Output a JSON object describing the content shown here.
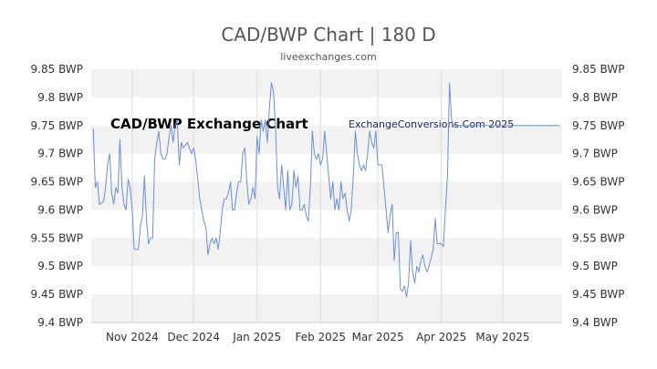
{
  "header": {
    "title": "CAD/BWP Chart | 180 D",
    "subtitle": "liveexchanges.com"
  },
  "watermarks": {
    "chart_label": "CAD/BWP Exchange Chart",
    "site_label": "ExchangeConversions.Com 2025"
  },
  "colors": {
    "line": "#6b8fd6",
    "band": "#f2f2f2",
    "grid": "#dddddd"
  },
  "chart_data": {
    "type": "line",
    "title": "CAD/BWP Chart | 180 D",
    "subtitle": "liveexchanges.com",
    "xlabel": "",
    "ylabel": "",
    "ylim": [
      9.4,
      9.85
    ],
    "y_ticks": [
      {
        "value": 9.85,
        "label": "9.85 BWP"
      },
      {
        "value": 9.8,
        "label": "9.8 BWP"
      },
      {
        "value": 9.75,
        "label": "9.75 BWP"
      },
      {
        "value": 9.7,
        "label": "9.7 BWP"
      },
      {
        "value": 9.65,
        "label": "9.65 BWP"
      },
      {
        "value": 9.6,
        "label": "9.6 BWP"
      },
      {
        "value": 9.55,
        "label": "9.55 BWP"
      },
      {
        "value": 9.5,
        "label": "9.5 BWP"
      },
      {
        "value": 9.45,
        "label": "9.45 BWP"
      },
      {
        "value": 9.4,
        "label": "9.4 BWP"
      }
    ],
    "x_range": [
      "2024-10-12",
      "2025-05-30"
    ],
    "x_ticks": [
      {
        "date": "2024-11-01",
        "label": "Nov 2024"
      },
      {
        "date": "2024-12-01",
        "label": "Dec 2024"
      },
      {
        "date": "2025-01-01",
        "label": "Jan 2025"
      },
      {
        "date": "2025-02-01",
        "label": "Feb 2025"
      },
      {
        "date": "2025-03-01",
        "label": "Mar 2025"
      },
      {
        "date": "2025-04-01",
        "label": "Apr 2025"
      },
      {
        "date": "2025-05-01",
        "label": "May 2025"
      }
    ],
    "grid": true,
    "legend": "none",
    "series": [
      {
        "points": [
          [
            "2024-10-13",
            9.745
          ],
          [
            "2024-10-14",
            9.64
          ],
          [
            "2024-10-15",
            9.65
          ],
          [
            "2024-10-16",
            9.61
          ],
          [
            "2024-10-18",
            9.615
          ],
          [
            "2024-10-19",
            9.64
          ],
          [
            "2024-10-20",
            9.68
          ],
          [
            "2024-10-21",
            9.7
          ],
          [
            "2024-10-22",
            9.63
          ],
          [
            "2024-10-23",
            9.61
          ],
          [
            "2024-10-24",
            9.64
          ],
          [
            "2024-10-25",
            9.63
          ],
          [
            "2024-10-26",
            9.725
          ],
          [
            "2024-10-27",
            9.64
          ],
          [
            "2024-10-28",
            9.61
          ],
          [
            "2024-10-29",
            9.6
          ],
          [
            "2024-10-30",
            9.655
          ],
          [
            "2024-10-31",
            9.64
          ],
          [
            "2024-11-01",
            9.6
          ],
          [
            "2024-11-02",
            9.53
          ],
          [
            "2024-11-03",
            9.53
          ],
          [
            "2024-11-04",
            9.53
          ],
          [
            "2024-11-05",
            9.57
          ],
          [
            "2024-11-06",
            9.59
          ],
          [
            "2024-11-07",
            9.66
          ],
          [
            "2024-11-08",
            9.58
          ],
          [
            "2024-11-09",
            9.54
          ],
          [
            "2024-11-10",
            9.55
          ],
          [
            "2024-11-11",
            9.55
          ],
          [
            "2024-11-12",
            9.69
          ],
          [
            "2024-11-13",
            9.72
          ],
          [
            "2024-11-14",
            9.74
          ],
          [
            "2024-11-15",
            9.7
          ],
          [
            "2024-11-16",
            9.69
          ],
          [
            "2024-11-17",
            9.69
          ],
          [
            "2024-11-18",
            9.7
          ],
          [
            "2024-11-19",
            9.73
          ],
          [
            "2024-11-20",
            9.75
          ],
          [
            "2024-11-21",
            9.72
          ],
          [
            "2024-11-22",
            9.75
          ],
          [
            "2024-11-23",
            9.76
          ],
          [
            "2024-11-24",
            9.68
          ],
          [
            "2024-11-25",
            9.72
          ],
          [
            "2024-11-26",
            9.71
          ],
          [
            "2024-11-28",
            9.72
          ],
          [
            "2024-11-29",
            9.71
          ],
          [
            "2024-11-30",
            9.7
          ],
          [
            "2024-12-01",
            9.71
          ],
          [
            "2024-12-02",
            9.69
          ],
          [
            "2024-12-04",
            9.62
          ],
          [
            "2024-12-05",
            9.6
          ],
          [
            "2024-12-06",
            9.58
          ],
          [
            "2024-12-07",
            9.57
          ],
          [
            "2024-12-08",
            9.52
          ],
          [
            "2024-12-09",
            9.54
          ],
          [
            "2024-12-10",
            9.55
          ],
          [
            "2024-12-11",
            9.54
          ],
          [
            "2024-12-12",
            9.55
          ],
          [
            "2024-12-13",
            9.53
          ],
          [
            "2024-12-14",
            9.56
          ],
          [
            "2024-12-15",
            9.6
          ],
          [
            "2024-12-16",
            9.62
          ],
          [
            "2024-12-17",
            9.62
          ],
          [
            "2024-12-18",
            9.63
          ],
          [
            "2024-12-19",
            9.65
          ],
          [
            "2024-12-20",
            9.6
          ],
          [
            "2024-12-21",
            9.6
          ],
          [
            "2024-12-22",
            9.63
          ],
          [
            "2024-12-23",
            9.65
          ],
          [
            "2024-12-24",
            9.65
          ],
          [
            "2024-12-25",
            9.7
          ],
          [
            "2024-12-26",
            9.71
          ],
          [
            "2024-12-27",
            9.65
          ],
          [
            "2024-12-28",
            9.61
          ],
          [
            "2024-12-29",
            9.62
          ],
          [
            "2024-12-30",
            9.64
          ],
          [
            "2024-12-31",
            9.62
          ],
          [
            "2025-01-01",
            9.73
          ],
          [
            "2025-01-02",
            9.7
          ],
          [
            "2025-01-03",
            9.76
          ],
          [
            "2025-01-04",
            9.74
          ],
          [
            "2025-01-05",
            9.76
          ],
          [
            "2025-01-06",
            9.72
          ],
          [
            "2025-01-07",
            9.78
          ],
          [
            "2025-01-08",
            9.826
          ],
          [
            "2025-01-09",
            9.81
          ],
          [
            "2025-01-10",
            9.75
          ],
          [
            "2025-01-11",
            9.64
          ],
          [
            "2025-01-12",
            9.62
          ],
          [
            "2025-01-13",
            9.68
          ],
          [
            "2025-01-14",
            9.64
          ],
          [
            "2025-01-15",
            9.6
          ],
          [
            "2025-01-16",
            9.67
          ],
          [
            "2025-01-17",
            9.6
          ],
          [
            "2025-01-18",
            9.61
          ],
          [
            "2025-01-19",
            9.67
          ],
          [
            "2025-01-20",
            9.64
          ],
          [
            "2025-01-21",
            9.66
          ],
          [
            "2025-01-22",
            9.6
          ],
          [
            "2025-01-23",
            9.6
          ],
          [
            "2025-01-24",
            9.61
          ],
          [
            "2025-01-25",
            9.59
          ],
          [
            "2025-01-26",
            9.58
          ],
          [
            "2025-01-27",
            9.64
          ],
          [
            "2025-01-28",
            9.74
          ],
          [
            "2025-01-29",
            9.7
          ],
          [
            "2025-01-30",
            9.69
          ],
          [
            "2025-01-31",
            9.7
          ],
          [
            "2025-02-01",
            9.68
          ],
          [
            "2025-02-02",
            9.69
          ],
          [
            "2025-02-03",
            9.74
          ],
          [
            "2025-02-04",
            9.7
          ],
          [
            "2025-02-05",
            9.66
          ],
          [
            "2025-02-06",
            9.62
          ],
          [
            "2025-02-07",
            9.65
          ],
          [
            "2025-02-08",
            9.6
          ],
          [
            "2025-02-09",
            9.62
          ],
          [
            "2025-02-10",
            9.6
          ],
          [
            "2025-02-11",
            9.65
          ],
          [
            "2025-02-12",
            9.62
          ],
          [
            "2025-02-13",
            9.63
          ],
          [
            "2025-02-14",
            9.6
          ],
          [
            "2025-02-15",
            9.58
          ],
          [
            "2025-02-16",
            9.6
          ],
          [
            "2025-02-17",
            9.66
          ],
          [
            "2025-02-18",
            9.74
          ],
          [
            "2025-02-19",
            9.7
          ],
          [
            "2025-02-20",
            9.68
          ],
          [
            "2025-02-21",
            9.67
          ],
          [
            "2025-02-22",
            9.68
          ],
          [
            "2025-02-23",
            9.67
          ],
          [
            "2025-02-24",
            9.7
          ],
          [
            "2025-02-25",
            9.74
          ],
          [
            "2025-02-26",
            9.72
          ],
          [
            "2025-02-27",
            9.71
          ],
          [
            "2025-02-28",
            9.74
          ],
          [
            "2025-03-01",
            9.68
          ],
          [
            "2025-03-02",
            9.68
          ],
          [
            "2025-03-03",
            9.68
          ],
          [
            "2025-03-04",
            9.64
          ],
          [
            "2025-03-05",
            9.6
          ],
          [
            "2025-03-06",
            9.56
          ],
          [
            "2025-03-07",
            9.59
          ],
          [
            "2025-03-08",
            9.61
          ],
          [
            "2025-03-09",
            9.51
          ],
          [
            "2025-03-10",
            9.56
          ],
          [
            "2025-03-11",
            9.56
          ],
          [
            "2025-03-12",
            9.46
          ],
          [
            "2025-03-13",
            9.455
          ],
          [
            "2025-03-14",
            9.465
          ],
          [
            "2025-03-15",
            9.445
          ],
          [
            "2025-03-16",
            9.47
          ],
          [
            "2025-03-17",
            9.545
          ],
          [
            "2025-03-18",
            9.49
          ],
          [
            "2025-03-19",
            9.47
          ],
          [
            "2025-03-20",
            9.5
          ],
          [
            "2025-03-21",
            9.49
          ],
          [
            "2025-03-22",
            9.51
          ],
          [
            "2025-03-23",
            9.52
          ],
          [
            "2025-03-24",
            9.5
          ],
          [
            "2025-03-25",
            9.49
          ],
          [
            "2025-03-26",
            9.5
          ],
          [
            "2025-03-27",
            9.515
          ],
          [
            "2025-03-28",
            9.53
          ],
          [
            "2025-03-29",
            9.585
          ],
          [
            "2025-03-30",
            9.54
          ],
          [
            "2025-03-31",
            9.54
          ],
          [
            "2025-04-01",
            9.54
          ],
          [
            "2025-04-02",
            9.535
          ],
          [
            "2025-04-03",
            9.6
          ],
          [
            "2025-04-04",
            9.66
          ],
          [
            "2025-04-05",
            9.825
          ],
          [
            "2025-04-06",
            9.76
          ],
          [
            "2025-04-07",
            9.75
          ],
          [
            "2025-04-10",
            9.75
          ],
          [
            "2025-04-20",
            9.75
          ],
          [
            "2025-05-01",
            9.75
          ],
          [
            "2025-05-15",
            9.75
          ],
          [
            "2025-05-29",
            9.75
          ]
        ]
      }
    ]
  }
}
